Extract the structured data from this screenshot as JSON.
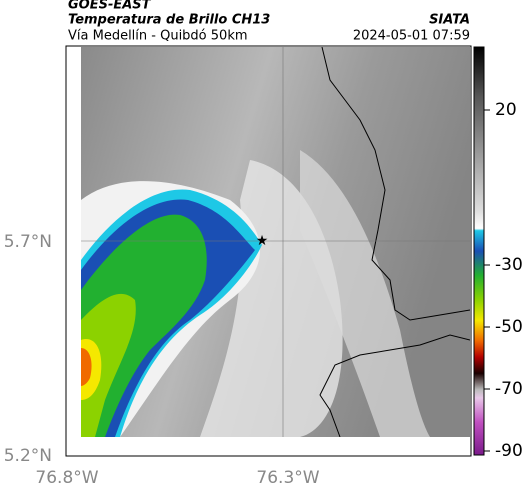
{
  "header": {
    "title": "GOES-EAST",
    "subtitle": "Temperatura de Brillo CH13",
    "region": "Vía Medellín - Quibdó 50km",
    "source": "SIATA",
    "datetime": "2024-05-01 07:59"
  },
  "map": {
    "lat_labels": [
      "5.7°N",
      "5.2°N"
    ],
    "lon_labels": [
      "76.8°W",
      "76.3°W"
    ]
  },
  "colorbar": {
    "ticks": [
      20,
      -30,
      -50,
      -70,
      -90
    ]
  }
}
